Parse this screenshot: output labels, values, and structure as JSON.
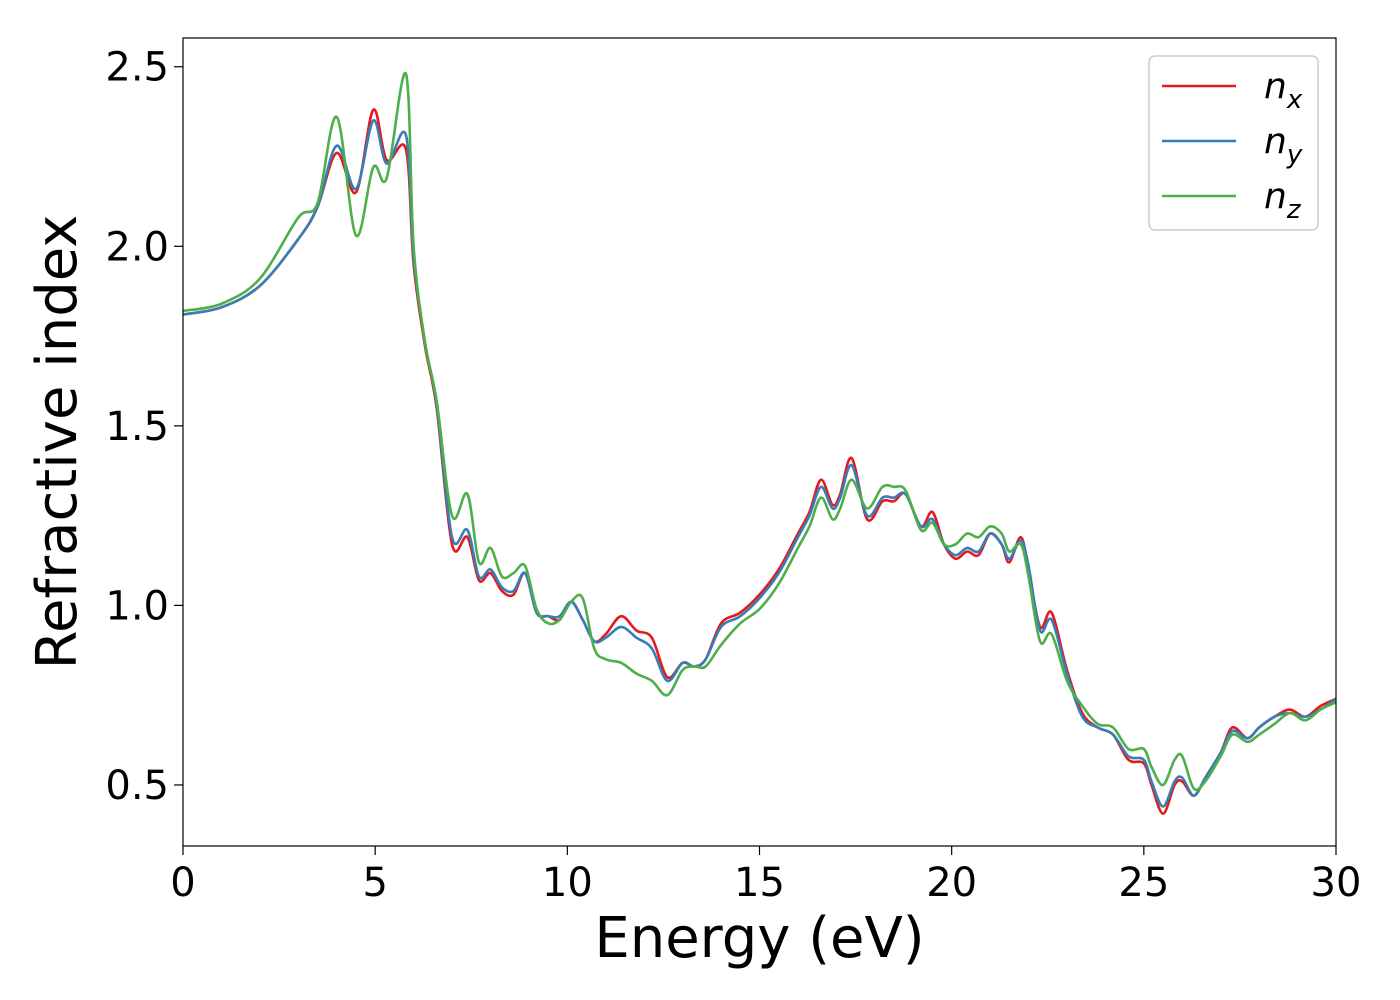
{
  "chart_data": {
    "type": "line",
    "title": "",
    "xlabel": "Energy (eV)",
    "ylabel": "Refractive index",
    "xlim": [
      0,
      30
    ],
    "ylim": [
      0.33,
      2.58
    ],
    "xticks": [
      0,
      5,
      10,
      15,
      20,
      25,
      30
    ],
    "yticks": [
      0.5,
      1.0,
      1.5,
      2.0,
      2.5
    ],
    "xtick_labels": [
      "0",
      "5",
      "10",
      "15",
      "20",
      "25",
      "30"
    ],
    "ytick_labels": [
      "0.5",
      "1.0",
      "1.5",
      "2.0",
      "2.5"
    ],
    "grid": false,
    "legend_position": "top-right",
    "series": [
      {
        "name": "n_x",
        "label_main": "n",
        "label_sub": "x",
        "color": "#e41a1c",
        "x": [
          0,
          1,
          2,
          3,
          3.5,
          4.0,
          4.5,
          4.95,
          5.3,
          5.8,
          6.0,
          6.3,
          6.6,
          7.0,
          7.4,
          7.7,
          8.0,
          8.3,
          8.6,
          8.9,
          9.2,
          9.5,
          9.8,
          10.1,
          10.4,
          10.7,
          11.0,
          11.4,
          11.8,
          12.2,
          12.6,
          13.0,
          13.3,
          13.6,
          14.0,
          14.5,
          15.0,
          15.5,
          16.0,
          16.3,
          16.6,
          16.9,
          17.1,
          17.4,
          17.8,
          18.2,
          18.5,
          18.8,
          19.2,
          19.5,
          19.8,
          20.1,
          20.4,
          20.7,
          21.0,
          21.3,
          21.5,
          21.8,
          22.0,
          22.3,
          22.6,
          23.0,
          23.4,
          23.8,
          24.2,
          24.6,
          25.0,
          25.2,
          25.5,
          25.8,
          26.0,
          26.3,
          26.6,
          27.0,
          27.3,
          27.7,
          28.0,
          28.4,
          28.8,
          29.2,
          29.6,
          30.0
        ],
        "y": [
          1.81,
          1.83,
          1.89,
          2.02,
          2.11,
          2.26,
          2.15,
          2.38,
          2.24,
          2.27,
          1.95,
          1.72,
          1.55,
          1.17,
          1.19,
          1.07,
          1.09,
          1.04,
          1.03,
          1.09,
          0.98,
          0.97,
          0.96,
          1.01,
          0.96,
          0.9,
          0.92,
          0.97,
          0.93,
          0.91,
          0.8,
          0.84,
          0.83,
          0.85,
          0.95,
          0.98,
          1.03,
          1.1,
          1.2,
          1.26,
          1.35,
          1.28,
          1.31,
          1.41,
          1.24,
          1.29,
          1.29,
          1.31,
          1.22,
          1.26,
          1.17,
          1.13,
          1.15,
          1.14,
          1.2,
          1.17,
          1.12,
          1.19,
          1.1,
          0.94,
          0.98,
          0.82,
          0.7,
          0.66,
          0.64,
          0.57,
          0.56,
          0.5,
          0.42,
          0.5,
          0.51,
          0.47,
          0.52,
          0.59,
          0.66,
          0.63,
          0.66,
          0.69,
          0.71,
          0.69,
          0.72,
          0.74
        ]
      },
      {
        "name": "n_y",
        "label_main": "n",
        "label_sub": "y",
        "color": "#377eb8",
        "x": [
          0,
          1,
          2,
          3,
          3.5,
          4.0,
          4.5,
          4.95,
          5.3,
          5.8,
          6.0,
          6.3,
          6.6,
          7.0,
          7.4,
          7.7,
          8.0,
          8.3,
          8.6,
          8.9,
          9.2,
          9.5,
          9.8,
          10.1,
          10.4,
          10.7,
          11.0,
          11.4,
          11.8,
          12.2,
          12.6,
          13.0,
          13.3,
          13.6,
          14.0,
          14.5,
          15.0,
          15.5,
          16.0,
          16.3,
          16.6,
          16.9,
          17.1,
          17.4,
          17.8,
          18.2,
          18.5,
          18.8,
          19.2,
          19.5,
          19.8,
          20.1,
          20.4,
          20.7,
          21.0,
          21.3,
          21.5,
          21.8,
          22.0,
          22.3,
          22.6,
          23.0,
          23.4,
          23.8,
          24.2,
          24.6,
          25.0,
          25.2,
          25.5,
          25.8,
          26.0,
          26.3,
          26.6,
          27.0,
          27.3,
          27.7,
          28.0,
          28.4,
          28.8,
          29.2,
          29.6,
          30.0
        ],
        "y": [
          1.81,
          1.83,
          1.89,
          2.02,
          2.11,
          2.28,
          2.16,
          2.35,
          2.23,
          2.31,
          1.97,
          1.73,
          1.56,
          1.19,
          1.21,
          1.08,
          1.1,
          1.05,
          1.04,
          1.09,
          0.98,
          0.97,
          0.97,
          1.01,
          0.96,
          0.9,
          0.91,
          0.94,
          0.91,
          0.88,
          0.79,
          0.84,
          0.83,
          0.85,
          0.94,
          0.97,
          1.02,
          1.09,
          1.19,
          1.25,
          1.33,
          1.27,
          1.3,
          1.39,
          1.25,
          1.3,
          1.3,
          1.31,
          1.22,
          1.24,
          1.17,
          1.14,
          1.16,
          1.15,
          1.2,
          1.17,
          1.13,
          1.18,
          1.11,
          0.93,
          0.96,
          0.81,
          0.69,
          0.66,
          0.64,
          0.58,
          0.57,
          0.51,
          0.44,
          0.51,
          0.52,
          0.47,
          0.52,
          0.59,
          0.65,
          0.63,
          0.66,
          0.69,
          0.7,
          0.69,
          0.71,
          0.74
        ]
      },
      {
        "name": "n_z",
        "label_main": "n",
        "label_sub": "z",
        "color": "#4daf4a",
        "x": [
          0,
          1,
          2,
          3,
          3.5,
          4.0,
          4.5,
          4.95,
          5.3,
          5.8,
          6.0,
          6.3,
          6.6,
          7.0,
          7.4,
          7.7,
          8.0,
          8.3,
          8.6,
          8.9,
          9.2,
          9.5,
          9.8,
          10.1,
          10.4,
          10.7,
          11.0,
          11.4,
          11.8,
          12.2,
          12.6,
          13.0,
          13.3,
          13.6,
          14.0,
          14.5,
          15.0,
          15.5,
          16.0,
          16.3,
          16.6,
          16.9,
          17.1,
          17.4,
          17.8,
          18.2,
          18.5,
          18.8,
          19.2,
          19.5,
          19.8,
          20.1,
          20.4,
          20.7,
          21.0,
          21.3,
          21.5,
          21.8,
          22.0,
          22.3,
          22.6,
          23.0,
          23.4,
          23.8,
          24.2,
          24.6,
          25.0,
          25.2,
          25.5,
          25.8,
          26.0,
          26.3,
          26.6,
          27.0,
          27.3,
          27.7,
          28.0,
          28.4,
          28.8,
          29.2,
          29.6,
          30.0
        ],
        "y": [
          1.82,
          1.84,
          1.91,
          2.08,
          2.12,
          2.36,
          2.03,
          2.22,
          2.19,
          2.48,
          2.0,
          1.73,
          1.57,
          1.25,
          1.31,
          1.12,
          1.16,
          1.08,
          1.09,
          1.11,
          0.99,
          0.95,
          0.96,
          1.01,
          1.02,
          0.88,
          0.85,
          0.84,
          0.81,
          0.79,
          0.75,
          0.82,
          0.83,
          0.83,
          0.89,
          0.95,
          0.99,
          1.06,
          1.16,
          1.22,
          1.3,
          1.24,
          1.27,
          1.35,
          1.27,
          1.33,
          1.33,
          1.32,
          1.21,
          1.23,
          1.17,
          1.17,
          1.2,
          1.19,
          1.22,
          1.2,
          1.15,
          1.17,
          1.08,
          0.9,
          0.92,
          0.79,
          0.72,
          0.67,
          0.66,
          0.6,
          0.6,
          0.55,
          0.5,
          0.57,
          0.58,
          0.49,
          0.51,
          0.58,
          0.64,
          0.62,
          0.64,
          0.67,
          0.7,
          0.68,
          0.71,
          0.73
        ]
      }
    ]
  }
}
